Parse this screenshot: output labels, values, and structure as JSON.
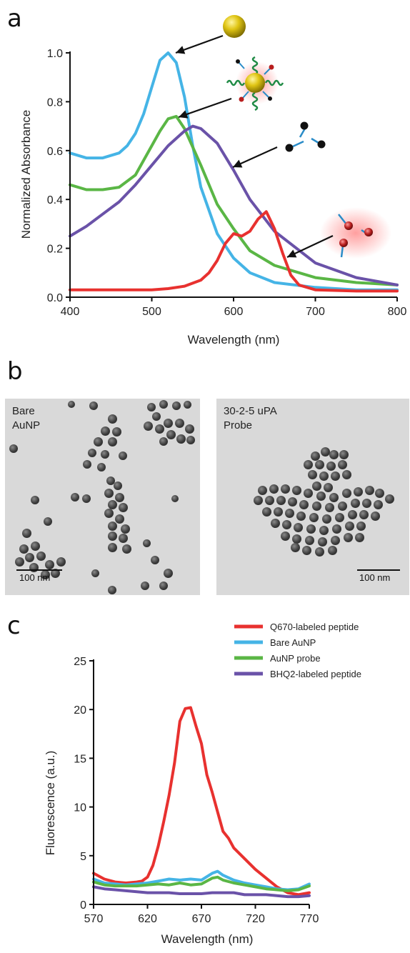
{
  "panel_labels": {
    "a": "a",
    "b": "b",
    "c": "c"
  },
  "chart_data": [
    {
      "type": "line",
      "panel": "a",
      "xlabel": "Wavelength (nm)",
      "ylabel": "Normalized Absorbance",
      "xlim": [
        400,
        800
      ],
      "ylim": [
        0.0,
        1.0
      ],
      "xticks": [
        400,
        500,
        600,
        700,
        800
      ],
      "yticks": [
        0.0,
        0.2,
        0.4,
        0.6,
        0.8,
        1.0
      ],
      "xtick_labels": [
        "400",
        "500",
        "600",
        "700",
        "800"
      ],
      "ytick_labels": [
        "0.0",
        "0.2",
        "0.4",
        "0.6",
        "0.8",
        "1.0"
      ],
      "grid": false,
      "series": [
        {
          "color": "#45b4e6",
          "x": [
            400,
            420,
            440,
            460,
            470,
            480,
            490,
            500,
            510,
            520,
            530,
            540,
            550,
            560,
            580,
            600,
            620,
            650,
            700,
            750,
            800
          ],
          "y": [
            0.59,
            0.57,
            0.57,
            0.59,
            0.62,
            0.67,
            0.75,
            0.86,
            0.97,
            1.0,
            0.96,
            0.82,
            0.62,
            0.45,
            0.26,
            0.16,
            0.1,
            0.06,
            0.04,
            0.03,
            0.03
          ]
        },
        {
          "color": "#5ab645",
          "x": [
            400,
            420,
            440,
            460,
            480,
            500,
            510,
            520,
            530,
            540,
            560,
            580,
            600,
            620,
            650,
            700,
            750,
            800
          ],
          "y": [
            0.46,
            0.44,
            0.44,
            0.45,
            0.5,
            0.62,
            0.68,
            0.73,
            0.74,
            0.69,
            0.54,
            0.38,
            0.28,
            0.19,
            0.13,
            0.08,
            0.06,
            0.05
          ]
        },
        {
          "color": "#6a52a8",
          "x": [
            400,
            420,
            440,
            460,
            480,
            500,
            520,
            540,
            550,
            560,
            580,
            600,
            620,
            650,
            700,
            750,
            800
          ],
          "y": [
            0.25,
            0.29,
            0.34,
            0.39,
            0.46,
            0.54,
            0.62,
            0.68,
            0.7,
            0.69,
            0.63,
            0.52,
            0.4,
            0.27,
            0.14,
            0.08,
            0.05
          ]
        },
        {
          "color": "#e8312f",
          "x": [
            400,
            450,
            500,
            520,
            540,
            560,
            570,
            580,
            590,
            600,
            610,
            620,
            630,
            640,
            650,
            660,
            670,
            680,
            700,
            750,
            800
          ],
          "y": [
            0.03,
            0.03,
            0.03,
            0.035,
            0.045,
            0.07,
            0.1,
            0.15,
            0.22,
            0.26,
            0.25,
            0.27,
            0.32,
            0.35,
            0.28,
            0.18,
            0.09,
            0.05,
            0.03,
            0.025,
            0.025
          ]
        }
      ]
    },
    {
      "type": "line",
      "panel": "c",
      "xlabel": "Wavelength (nm)",
      "ylabel": "Fluorescence (a.u.)",
      "xlim": [
        570,
        770
      ],
      "ylim": [
        0,
        25
      ],
      "xticks": [
        570,
        620,
        670,
        720,
        770
      ],
      "yticks": [
        0,
        5,
        10,
        15,
        20,
        25
      ],
      "xtick_labels": [
        "570",
        "620",
        "670",
        "720",
        "770"
      ],
      "ytick_labels": [
        "0",
        "5",
        "10",
        "15",
        "20",
        "25"
      ],
      "grid": false,
      "legend_position": "top-right",
      "series": [
        {
          "name": "Q670-labeled peptide",
          "color": "#e8312f",
          "x": [
            570,
            580,
            590,
            600,
            610,
            615,
            620,
            625,
            630,
            635,
            640,
            645,
            650,
            655,
            660,
            665,
            670,
            675,
            680,
            685,
            690,
            695,
            700,
            710,
            720,
            730,
            740,
            750,
            760,
            770
          ],
          "y": [
            3.2,
            2.6,
            2.3,
            2.2,
            2.3,
            2.4,
            2.8,
            4.0,
            6.0,
            8.5,
            11.2,
            14.5,
            18.8,
            20.1,
            20.2,
            18.3,
            16.5,
            13.3,
            11.5,
            9.5,
            7.5,
            6.8,
            5.8,
            4.7,
            3.6,
            2.7,
            1.8,
            1.2,
            1.0,
            1.2
          ]
        },
        {
          "name": "Bare AuNP",
          "color": "#45b4e6",
          "x": [
            570,
            580,
            590,
            600,
            610,
            620,
            630,
            640,
            650,
            660,
            670,
            680,
            685,
            690,
            700,
            710,
            720,
            730,
            740,
            750,
            760,
            770
          ],
          "y": [
            2.6,
            2.2,
            2.1,
            2.0,
            2.1,
            2.2,
            2.4,
            2.6,
            2.5,
            2.6,
            2.5,
            3.2,
            3.4,
            3.0,
            2.5,
            2.2,
            2.0,
            1.8,
            1.6,
            1.5,
            1.6,
            2.1
          ]
        },
        {
          "name": "AuNP probe",
          "color": "#5ab645",
          "x": [
            570,
            580,
            590,
            600,
            610,
            620,
            630,
            640,
            650,
            660,
            670,
            680,
            685,
            690,
            700,
            710,
            720,
            730,
            740,
            750,
            760,
            770
          ],
          "y": [
            2.3,
            2.0,
            1.9,
            1.9,
            1.9,
            2.0,
            2.1,
            2.0,
            2.2,
            2.0,
            2.1,
            2.7,
            2.8,
            2.5,
            2.2,
            2.0,
            1.8,
            1.6,
            1.5,
            1.4,
            1.5,
            1.9
          ]
        },
        {
          "name": "BHQ2-labeled peptide",
          "color": "#6a52a8",
          "x": [
            570,
            580,
            590,
            600,
            610,
            620,
            630,
            640,
            650,
            660,
            670,
            680,
            690,
            700,
            710,
            720,
            730,
            740,
            750,
            760,
            770
          ],
          "y": [
            1.8,
            1.6,
            1.5,
            1.4,
            1.3,
            1.2,
            1.2,
            1.2,
            1.1,
            1.1,
            1.1,
            1.2,
            1.2,
            1.2,
            1.0,
            1.0,
            1.0,
            0.9,
            0.8,
            0.8,
            0.9
          ]
        }
      ]
    }
  ],
  "tem": {
    "left": {
      "label": "Bare\nAuNP",
      "scale": "100 nm"
    },
    "right": {
      "label": "30-2-5 uPA\nProbe",
      "scale": "100 nm"
    }
  }
}
